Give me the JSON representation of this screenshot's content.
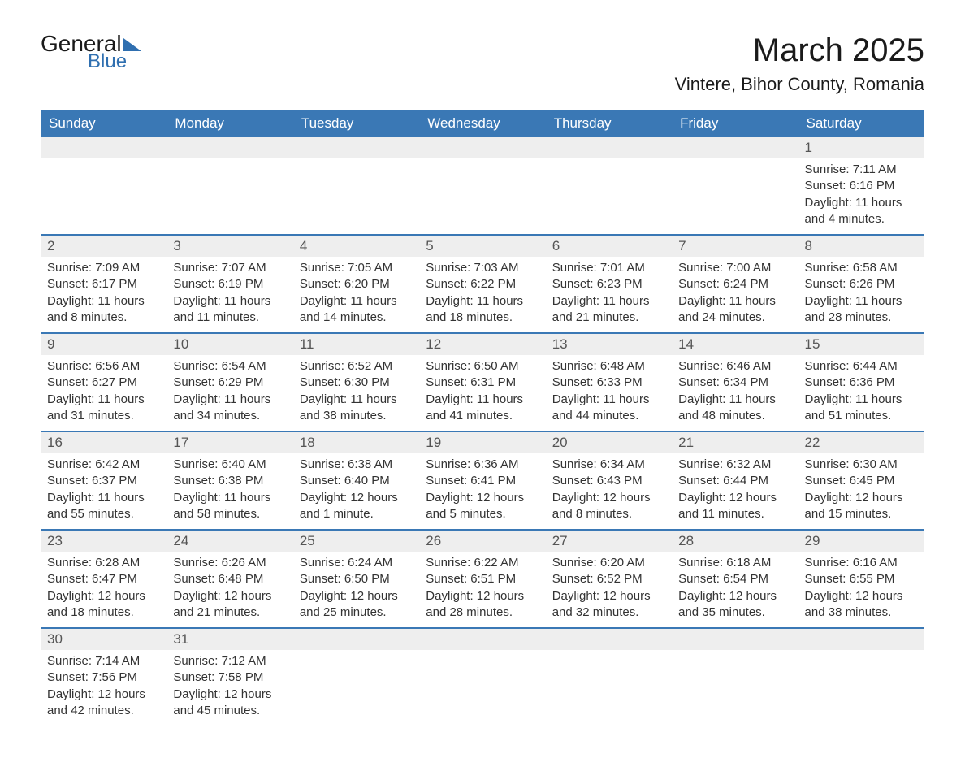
{
  "logo": {
    "top": "General",
    "bottom": "Blue"
  },
  "title": {
    "month": "March 2025",
    "location": "Vintere, Bihor County, Romania"
  },
  "colors": {
    "header_bg": "#3a78b5",
    "header_text": "#ffffff",
    "daynum_bg": "#eeeeee",
    "border": "#3a78b5",
    "body_text": "#333333",
    "logo_accent": "#2f6fb0"
  },
  "font": {
    "family": "Arial",
    "title_size_pt": 30,
    "location_size_pt": 16,
    "header_size_pt": 13,
    "body_size_pt": 11
  },
  "layout": {
    "columns": 7,
    "first_day_column": 6
  },
  "weekdays": [
    "Sunday",
    "Monday",
    "Tuesday",
    "Wednesday",
    "Thursday",
    "Friday",
    "Saturday"
  ],
  "days": [
    {
      "n": 1,
      "sunrise": "7:11 AM",
      "sunset": "6:16 PM",
      "daylight": "11 hours and 4 minutes."
    },
    {
      "n": 2,
      "sunrise": "7:09 AM",
      "sunset": "6:17 PM",
      "daylight": "11 hours and 8 minutes."
    },
    {
      "n": 3,
      "sunrise": "7:07 AM",
      "sunset": "6:19 PM",
      "daylight": "11 hours and 11 minutes."
    },
    {
      "n": 4,
      "sunrise": "7:05 AM",
      "sunset": "6:20 PM",
      "daylight": "11 hours and 14 minutes."
    },
    {
      "n": 5,
      "sunrise": "7:03 AM",
      "sunset": "6:22 PM",
      "daylight": "11 hours and 18 minutes."
    },
    {
      "n": 6,
      "sunrise": "7:01 AM",
      "sunset": "6:23 PM",
      "daylight": "11 hours and 21 minutes."
    },
    {
      "n": 7,
      "sunrise": "7:00 AM",
      "sunset": "6:24 PM",
      "daylight": "11 hours and 24 minutes."
    },
    {
      "n": 8,
      "sunrise": "6:58 AM",
      "sunset": "6:26 PM",
      "daylight": "11 hours and 28 minutes."
    },
    {
      "n": 9,
      "sunrise": "6:56 AM",
      "sunset": "6:27 PM",
      "daylight": "11 hours and 31 minutes."
    },
    {
      "n": 10,
      "sunrise": "6:54 AM",
      "sunset": "6:29 PM",
      "daylight": "11 hours and 34 minutes."
    },
    {
      "n": 11,
      "sunrise": "6:52 AM",
      "sunset": "6:30 PM",
      "daylight": "11 hours and 38 minutes."
    },
    {
      "n": 12,
      "sunrise": "6:50 AM",
      "sunset": "6:31 PM",
      "daylight": "11 hours and 41 minutes."
    },
    {
      "n": 13,
      "sunrise": "6:48 AM",
      "sunset": "6:33 PM",
      "daylight": "11 hours and 44 minutes."
    },
    {
      "n": 14,
      "sunrise": "6:46 AM",
      "sunset": "6:34 PM",
      "daylight": "11 hours and 48 minutes."
    },
    {
      "n": 15,
      "sunrise": "6:44 AM",
      "sunset": "6:36 PM",
      "daylight": "11 hours and 51 minutes."
    },
    {
      "n": 16,
      "sunrise": "6:42 AM",
      "sunset": "6:37 PM",
      "daylight": "11 hours and 55 minutes."
    },
    {
      "n": 17,
      "sunrise": "6:40 AM",
      "sunset": "6:38 PM",
      "daylight": "11 hours and 58 minutes."
    },
    {
      "n": 18,
      "sunrise": "6:38 AM",
      "sunset": "6:40 PM",
      "daylight": "12 hours and 1 minute."
    },
    {
      "n": 19,
      "sunrise": "6:36 AM",
      "sunset": "6:41 PM",
      "daylight": "12 hours and 5 minutes."
    },
    {
      "n": 20,
      "sunrise": "6:34 AM",
      "sunset": "6:43 PM",
      "daylight": "12 hours and 8 minutes."
    },
    {
      "n": 21,
      "sunrise": "6:32 AM",
      "sunset": "6:44 PM",
      "daylight": "12 hours and 11 minutes."
    },
    {
      "n": 22,
      "sunrise": "6:30 AM",
      "sunset": "6:45 PM",
      "daylight": "12 hours and 15 minutes."
    },
    {
      "n": 23,
      "sunrise": "6:28 AM",
      "sunset": "6:47 PM",
      "daylight": "12 hours and 18 minutes."
    },
    {
      "n": 24,
      "sunrise": "6:26 AM",
      "sunset": "6:48 PM",
      "daylight": "12 hours and 21 minutes."
    },
    {
      "n": 25,
      "sunrise": "6:24 AM",
      "sunset": "6:50 PM",
      "daylight": "12 hours and 25 minutes."
    },
    {
      "n": 26,
      "sunrise": "6:22 AM",
      "sunset": "6:51 PM",
      "daylight": "12 hours and 28 minutes."
    },
    {
      "n": 27,
      "sunrise": "6:20 AM",
      "sunset": "6:52 PM",
      "daylight": "12 hours and 32 minutes."
    },
    {
      "n": 28,
      "sunrise": "6:18 AM",
      "sunset": "6:54 PM",
      "daylight": "12 hours and 35 minutes."
    },
    {
      "n": 29,
      "sunrise": "6:16 AM",
      "sunset": "6:55 PM",
      "daylight": "12 hours and 38 minutes."
    },
    {
      "n": 30,
      "sunrise": "7:14 AM",
      "sunset": "7:56 PM",
      "daylight": "12 hours and 42 minutes."
    },
    {
      "n": 31,
      "sunrise": "7:12 AM",
      "sunset": "7:58 PM",
      "daylight": "12 hours and 45 minutes."
    }
  ],
  "labels": {
    "sunrise": "Sunrise: ",
    "sunset": "Sunset: ",
    "daylight": "Daylight: "
  }
}
